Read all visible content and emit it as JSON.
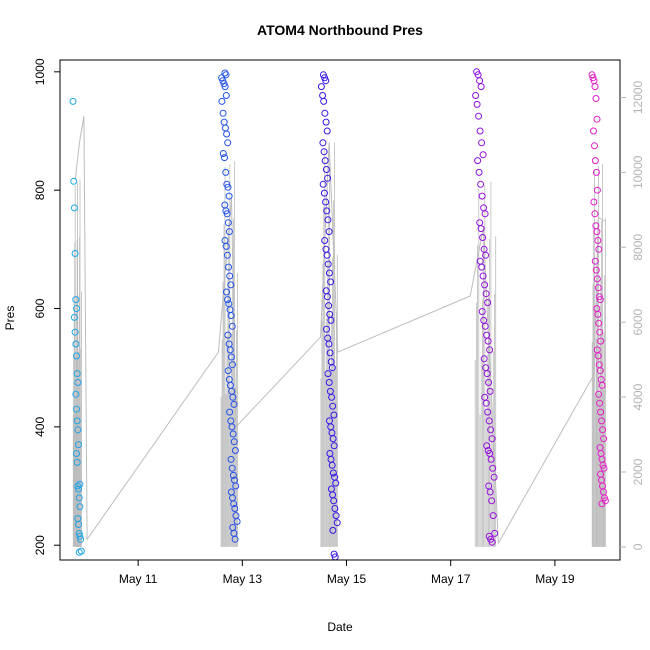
{
  "chart_data": {
    "type": "scatter",
    "title": "ATOM4 Northbound Pres",
    "xlabel": "Date",
    "ylabel": "Pres",
    "x_ticks": [
      "May 11",
      "May 13",
      "May 15",
      "May 17",
      "May 19"
    ],
    "y_ticks_left": [
      "200",
      "400",
      "600",
      "800",
      "1000"
    ],
    "y_ticks_right": [
      "0",
      "2000",
      "4000",
      "6000",
      "8000",
      "10000",
      "12000"
    ],
    "xlim": [
      "2021-05-09 12:00",
      "2021-05-20 06:00"
    ],
    "ylim": [
      175,
      1020
    ],
    "ylim_right": [
      -350,
      13000
    ],
    "grid": false,
    "legend": "none",
    "colors": {
      "secondary_line": "#bdbdbd",
      "right_axis": "#b3b3b3",
      "point_gradient": [
        "#1ea7e8",
        "#2060e8",
        "#3a10e8",
        "#8a10e0",
        "#e81ec8"
      ]
    },
    "secondary_series": {
      "name": "",
      "axis": "right",
      "points": [
        [
          "2021-05-09 19:00",
          9800
        ],
        [
          "2021-05-09 21:00",
          10800
        ],
        [
          "2021-05-09 23:00",
          11500
        ],
        [
          "2021-05-10 00:30",
          200
        ],
        [
          "2021-05-12 13:00",
          5200
        ],
        [
          "2021-05-12 19:00",
          9300
        ],
        [
          "2021-05-12 21:00",
          3200
        ],
        [
          "2021-05-14 12:00",
          5600
        ],
        [
          "2021-05-14 16:00",
          10800
        ],
        [
          "2021-05-14 20:00",
          5200
        ],
        [
          "2021-05-17 09:00",
          6700
        ],
        [
          "2021-05-17 15:00",
          8500
        ],
        [
          "2021-05-17 22:00",
          100
        ],
        [
          "2021-05-19 18:00",
          4600
        ],
        [
          "2021-05-19 20:00",
          8800
        ],
        [
          "2021-05-19 23:00",
          8700
        ]
      ]
    },
    "series": [
      {
        "name": "",
        "x_range": [
          "2021-05-09 18:00",
          "2021-05-09 22:00"
        ],
        "values": [
          950,
          815,
          770,
          693,
          615,
          600,
          585,
          560,
          540,
          520,
          490,
          475,
          455,
          430,
          410,
          395,
          370,
          355,
          340,
          300,
          295,
          280,
          265,
          245,
          235,
          220,
          215,
          210,
          190,
          188,
          303
        ]
      },
      {
        "name": "",
        "x_range": [
          "2021-05-12 14:00",
          "2021-05-12 22:00"
        ],
        "values": [
          998,
          995,
          990,
          985,
          980,
          975,
          960,
          950,
          930,
          915,
          905,
          895,
          880,
          862,
          855,
          830,
          810,
          805,
          790,
          775,
          765,
          760,
          745,
          730,
          715,
          705,
          690,
          670,
          655,
          640,
          628,
          615,
          608,
          598,
          588,
          570,
          555,
          540,
          530,
          518,
          505,
          495,
          480,
          470,
          460,
          450,
          438,
          425,
          410,
          400,
          388,
          375,
          360,
          345,
          330,
          318,
          310,
          300,
          290,
          280,
          270,
          262,
          250,
          240,
          230,
          220,
          210
        ]
      },
      {
        "name": "",
        "x_range": [
          "2021-05-14 12:00",
          "2021-05-14 20:00"
        ],
        "values": [
          995,
          990,
          985,
          975,
          960,
          950,
          930,
          915,
          900,
          880,
          865,
          850,
          835,
          820,
          810,
          795,
          780,
          765,
          750,
          730,
          715,
          700,
          690,
          675,
          660,
          645,
          630,
          620,
          605,
          590,
          580,
          565,
          550,
          540,
          525,
          510,
          500,
          490,
          475,
          460,
          450,
          435,
          420,
          410,
          400,
          390,
          380,
          368,
          355,
          345,
          335,
          322,
          315,
          305,
          295,
          285,
          275,
          262,
          250,
          238,
          225,
          185,
          180
        ]
      },
      {
        "name": "",
        "x_range": [
          "2021-05-17 11:00",
          "2021-05-17 21:00"
        ],
        "values": [
          1000,
          995,
          985,
          975,
          960,
          945,
          925,
          900,
          880,
          860,
          850,
          830,
          810,
          790,
          770,
          760,
          745,
          735,
          720,
          700,
          690,
          680,
          670,
          655,
          640,
          625,
          610,
          595,
          580,
          570,
          555,
          545,
          530,
          515,
          500,
          490,
          475,
          460,
          450,
          440,
          425,
          410,
          395,
          380,
          368,
          360,
          355,
          345,
          330,
          315,
          300,
          290,
          275,
          250,
          220,
          215,
          210,
          205
        ]
      },
      {
        "name": "",
        "x_range": [
          "2021-05-19 17:00",
          "2021-05-19 23:30"
        ],
        "values": [
          995,
          990,
          985,
          975,
          955,
          920,
          900,
          875,
          850,
          830,
          800,
          780,
          760,
          740,
          730,
          715,
          700,
          680,
          665,
          650,
          635,
          620,
          615,
          600,
          590,
          575,
          560,
          545,
          530,
          520,
          505,
          495,
          480,
          470,
          455,
          440,
          425,
          410,
          395,
          380,
          365,
          355,
          345,
          335,
          330,
          320,
          310,
          300,
          290,
          280,
          275,
          270
        ]
      }
    ]
  }
}
